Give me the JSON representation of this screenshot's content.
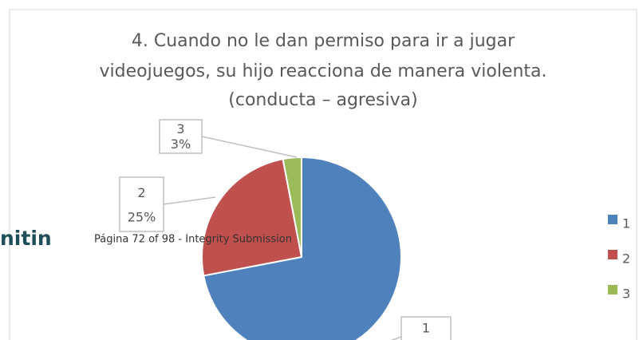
{
  "chart_data": {
    "type": "pie",
    "title_lines": [
      "4. Cuando no le dan permiso para ir a jugar",
      "videojuegos, su hijo reacciona de manera violenta.",
      "(conducta – agresiva)"
    ],
    "categories": [
      "1",
      "2",
      "3"
    ],
    "values": [
      72,
      25,
      3
    ],
    "value_labels": [
      null,
      "25%",
      "3%"
    ],
    "colors": [
      "#4f81bd",
      "#c0504d",
      "#9bbb59"
    ],
    "legend": "right"
  },
  "overlay": {
    "logo": "nitin",
    "footer": "Página 72 of 98 - Integrity Submission"
  }
}
